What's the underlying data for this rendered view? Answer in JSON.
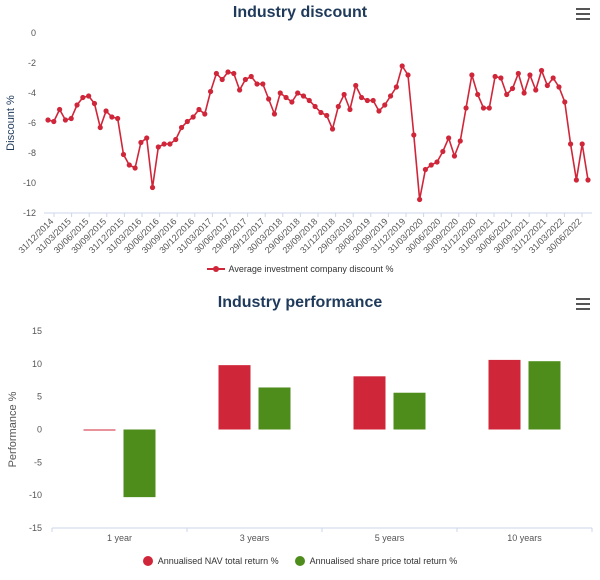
{
  "charts": [
    {
      "title": "Industry discount",
      "menu_icon": "hamburger-menu-icon",
      "chart_data": {
        "type": "line",
        "title": "Industry discount",
        "xlabel": "",
        "ylabel": "Discount %",
        "ylim": [
          -12,
          0
        ],
        "yticks": [
          0,
          -2,
          -4,
          -6,
          -8,
          -10,
          -12
        ],
        "grid": false,
        "legend_position": "bottom",
        "x_tick_labels": [
          "31/12/2014",
          "31/03/2015",
          "30/06/2015",
          "30/09/2015",
          "31/12/2015",
          "31/03/2016",
          "30/06/2016",
          "30/09/2016",
          "30/12/2016",
          "31/03/2017",
          "30/06/2017",
          "29/09/2017",
          "29/12/2017",
          "30/03/2018",
          "29/06/2018",
          "28/09/2018",
          "31/12/2018",
          "29/03/2019",
          "28/06/2019",
          "30/09/2019",
          "31/12/2019",
          "31/03/2020",
          "30/06/2020",
          "30/09/2020",
          "31/12/2020",
          "31/03/2021",
          "30/06/2021",
          "30/09/2021",
          "31/12/2021",
          "31/03/2022",
          "30/06/2022"
        ],
        "series": [
          {
            "name": "Average investment company discount %",
            "color": "#d0263a",
            "values": [
              -5.8,
              -5.9,
              -5.1,
              -5.8,
              -5.7,
              -4.8,
              -4.3,
              -4.2,
              -4.7,
              -6.3,
              -5.2,
              -5.6,
              -5.7,
              -8.1,
              -8.8,
              -9.0,
              -7.3,
              -7.0,
              -10.3,
              -7.6,
              -7.4,
              -7.4,
              -7.1,
              -6.3,
              -5.9,
              -5.6,
              -5.1,
              -5.4,
              -3.9,
              -2.7,
              -3.1,
              -2.6,
              -2.7,
              -3.8,
              -3.1,
              -2.9,
              -3.4,
              -3.4,
              -4.4,
              -5.4,
              -4.0,
              -4.3,
              -4.6,
              -4.0,
              -4.2,
              -4.5,
              -4.9,
              -5.3,
              -5.5,
              -6.4,
              -4.9,
              -4.1,
              -5.1,
              -3.5,
              -4.3,
              -4.5,
              -4.5,
              -5.2,
              -4.8,
              -4.2,
              -3.6,
              -2.2,
              -2.8,
              -6.8,
              -11.1,
              -9.1,
              -8.8,
              -8.6,
              -7.9,
              -7.0,
              -8.2,
              -7.2,
              -5.0,
              -2.8,
              -4.1,
              -5.0,
              -5.0,
              -2.9,
              -3.0,
              -4.1,
              -3.7,
              -2.7,
              -4.0,
              -2.8,
              -3.8,
              -2.5,
              -3.5,
              -3.0,
              -3.6,
              -4.6,
              -7.4,
              -9.8,
              -7.4,
              -9.8
            ]
          }
        ]
      }
    },
    {
      "title": "Industry performance",
      "menu_icon": "hamburger-menu-icon",
      "chart_data": {
        "type": "bar",
        "title": "Industry performance",
        "xlabel": "",
        "ylabel": "Performance %",
        "ylim": [
          -15,
          15
        ],
        "yticks": [
          15,
          10,
          5,
          0,
          -5,
          -10,
          -15
        ],
        "grid": false,
        "legend_position": "bottom",
        "categories": [
          "1 year",
          "3 years",
          "5 years",
          "10 years"
        ],
        "series": [
          {
            "name": "Annualised NAV total return %",
            "color": "#d0263a",
            "values": [
              -0.1,
              9.8,
              8.1,
              10.6
            ]
          },
          {
            "name": "Annualised share price total return %",
            "color": "#4e8c1c",
            "values": [
              -10.3,
              6.4,
              5.6,
              10.4
            ]
          }
        ]
      }
    }
  ]
}
